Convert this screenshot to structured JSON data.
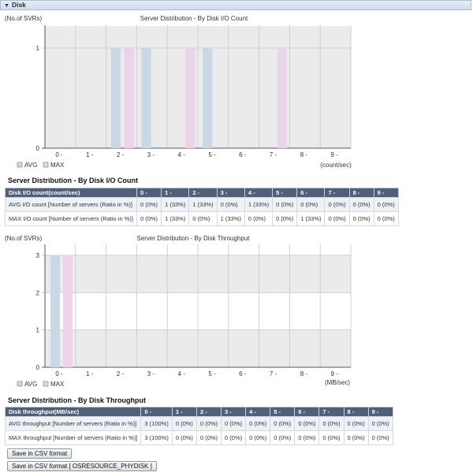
{
  "panel": {
    "title": "Disk"
  },
  "chart_io": {
    "ylabel": "(No.of SVRs)",
    "title": "Server Distribution - By Disk I/O Count",
    "xunit": "(count/sec)",
    "legend": [
      "AVG",
      "MAX"
    ]
  },
  "chart_tp": {
    "ylabel": "(No.of SVRs)",
    "title": "Server Distribution - By Disk Throughput",
    "xunit": "(MB/sec)",
    "legend": [
      "AVG",
      "MAX"
    ]
  },
  "chart_data": [
    {
      "type": "bar",
      "title": "Server Distribution - By Disk I/O Count",
      "ylabel": "(No.of SVRs)",
      "xlabel": "(count/sec)",
      "categories": [
        "0 -",
        "1 -",
        "2 -",
        "3 -",
        "4 -",
        "5 -",
        "6 -",
        "7 -",
        "8 -",
        "9 -"
      ],
      "ylim": [
        0,
        1
      ],
      "yticks": [
        0,
        1
      ],
      "series": [
        {
          "name": "AVG",
          "color": "#c8d8e4",
          "values": [
            0,
            1,
            1,
            0,
            1,
            0,
            0,
            0,
            0,
            0
          ]
        },
        {
          "name": "MAX",
          "color": "#ecd3ec",
          "values": [
            0,
            1,
            0,
            1,
            0,
            0,
            1,
            0,
            0,
            0
          ]
        }
      ],
      "legend_position": "bottom-left"
    },
    {
      "type": "bar",
      "title": "Server Distribution - By Disk Throughput",
      "ylabel": "(No.of SVRs)",
      "xlabel": "(MB/sec)",
      "categories": [
        "0 -",
        "1 -",
        "2 -",
        "3 -",
        "4 -",
        "5 -",
        "6 -",
        "7 -",
        "8 -",
        "9 -"
      ],
      "ylim": [
        0,
        3
      ],
      "yticks": [
        0,
        1,
        2,
        3
      ],
      "series": [
        {
          "name": "AVG",
          "color": "#c8d8e4",
          "values": [
            3,
            0,
            0,
            0,
            0,
            0,
            0,
            0,
            0,
            0
          ]
        },
        {
          "name": "MAX",
          "color": "#ecd3ec",
          "values": [
            3,
            0,
            0,
            0,
            0,
            0,
            0,
            0,
            0,
            0
          ]
        }
      ],
      "legend_position": "bottom-left"
    }
  ],
  "table_io": {
    "title": "Server Distribution - By Disk I/O Count",
    "headers": [
      "Disk I/O count(count/sec)",
      "0 -",
      "1 -",
      "2 -",
      "3 -",
      "4 -",
      "5 -",
      "6 -",
      "7 -",
      "8 -",
      "9 -"
    ],
    "rows": [
      [
        "AVG I/O count [Number of servers (Ratio in %)]",
        "0 (0%)",
        "1 (33%)",
        "1 (33%)",
        "0 (0%)",
        "1 (33%)",
        "0 (0%)",
        "0 (0%)",
        "0 (0%)",
        "0 (0%)",
        "0 (0%)"
      ],
      [
        "MAX I/O count [Number of servers (Ratio in %)]",
        "0 (0%)",
        "1 (33%)",
        "0 (0%)",
        "1 (33%)",
        "0 (0%)",
        "0 (0%)",
        "1 (33%)",
        "0 (0%)",
        "0 (0%)",
        "0 (0%)"
      ]
    ]
  },
  "table_tp": {
    "title": "Server Distribution - By Disk Throughput",
    "headers": [
      "Disk throughput(MB/sec)",
      "0 -",
      "1 -",
      "2 -",
      "3 -",
      "4 -",
      "5 -",
      "6 -",
      "7 -",
      "8 -",
      "9 -"
    ],
    "rows": [
      [
        "AVG throughput [Number of servers (Ratio in %)]",
        "3 (100%)",
        "0 (0%)",
        "0 (0%)",
        "0 (0%)",
        "0 (0%)",
        "0 (0%)",
        "0 (0%)",
        "0 (0%)",
        "0 (0%)",
        "0 (0%)"
      ],
      [
        "MAX throughput [Number of servers (Ratio in %)]",
        "3 (100%)",
        "0 (0%)",
        "0 (0%)",
        "0 (0%)",
        "0 (0%)",
        "0 (0%)",
        "0 (0%)",
        "0 (0%)",
        "0 (0%)",
        "0 (0%)"
      ]
    ]
  },
  "buttons": {
    "save_csv": "Save in CSV format",
    "save_csv_phydisk": "Save in CSV format [ OSRESOURCE_PHYDISK ]"
  }
}
